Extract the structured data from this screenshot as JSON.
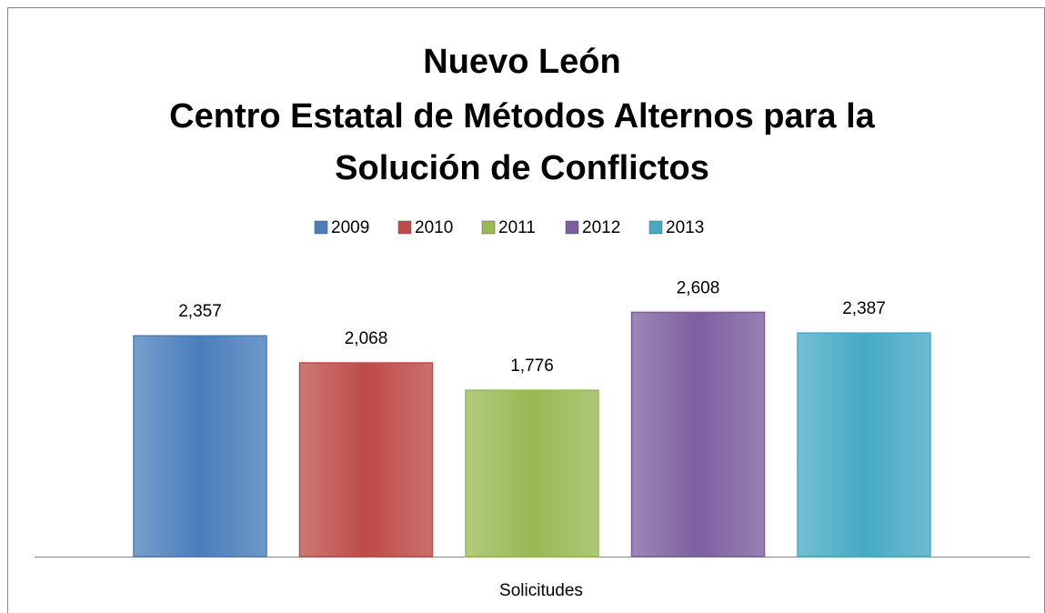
{
  "chart_data": {
    "type": "bar",
    "title": [
      "Nuevo León",
      "Centro Estatal de Métodos Alternos para la",
      "Solución de Conflictos"
    ],
    "categories": [
      "Solicitudes"
    ],
    "series": [
      {
        "name": "2009",
        "color": "#4a7ebb",
        "values": [
          2357
        ],
        "value_labels": [
          "2,357"
        ]
      },
      {
        "name": "2010",
        "color": "#be4b48",
        "values": [
          2068
        ],
        "value_labels": [
          "2,068"
        ]
      },
      {
        "name": "2011",
        "color": "#98b954",
        "values": [
          1776
        ],
        "value_labels": [
          "1,776"
        ]
      },
      {
        "name": "2012",
        "color": "#7d5fa0",
        "values": [
          2608
        ],
        "value_labels": [
          "2,608"
        ]
      },
      {
        "name": "2013",
        "color": "#46aac5",
        "values": [
          2387
        ],
        "value_labels": [
          "2,387"
        ]
      }
    ],
    "ylim": [
      0,
      3000
    ],
    "legend": "top"
  }
}
